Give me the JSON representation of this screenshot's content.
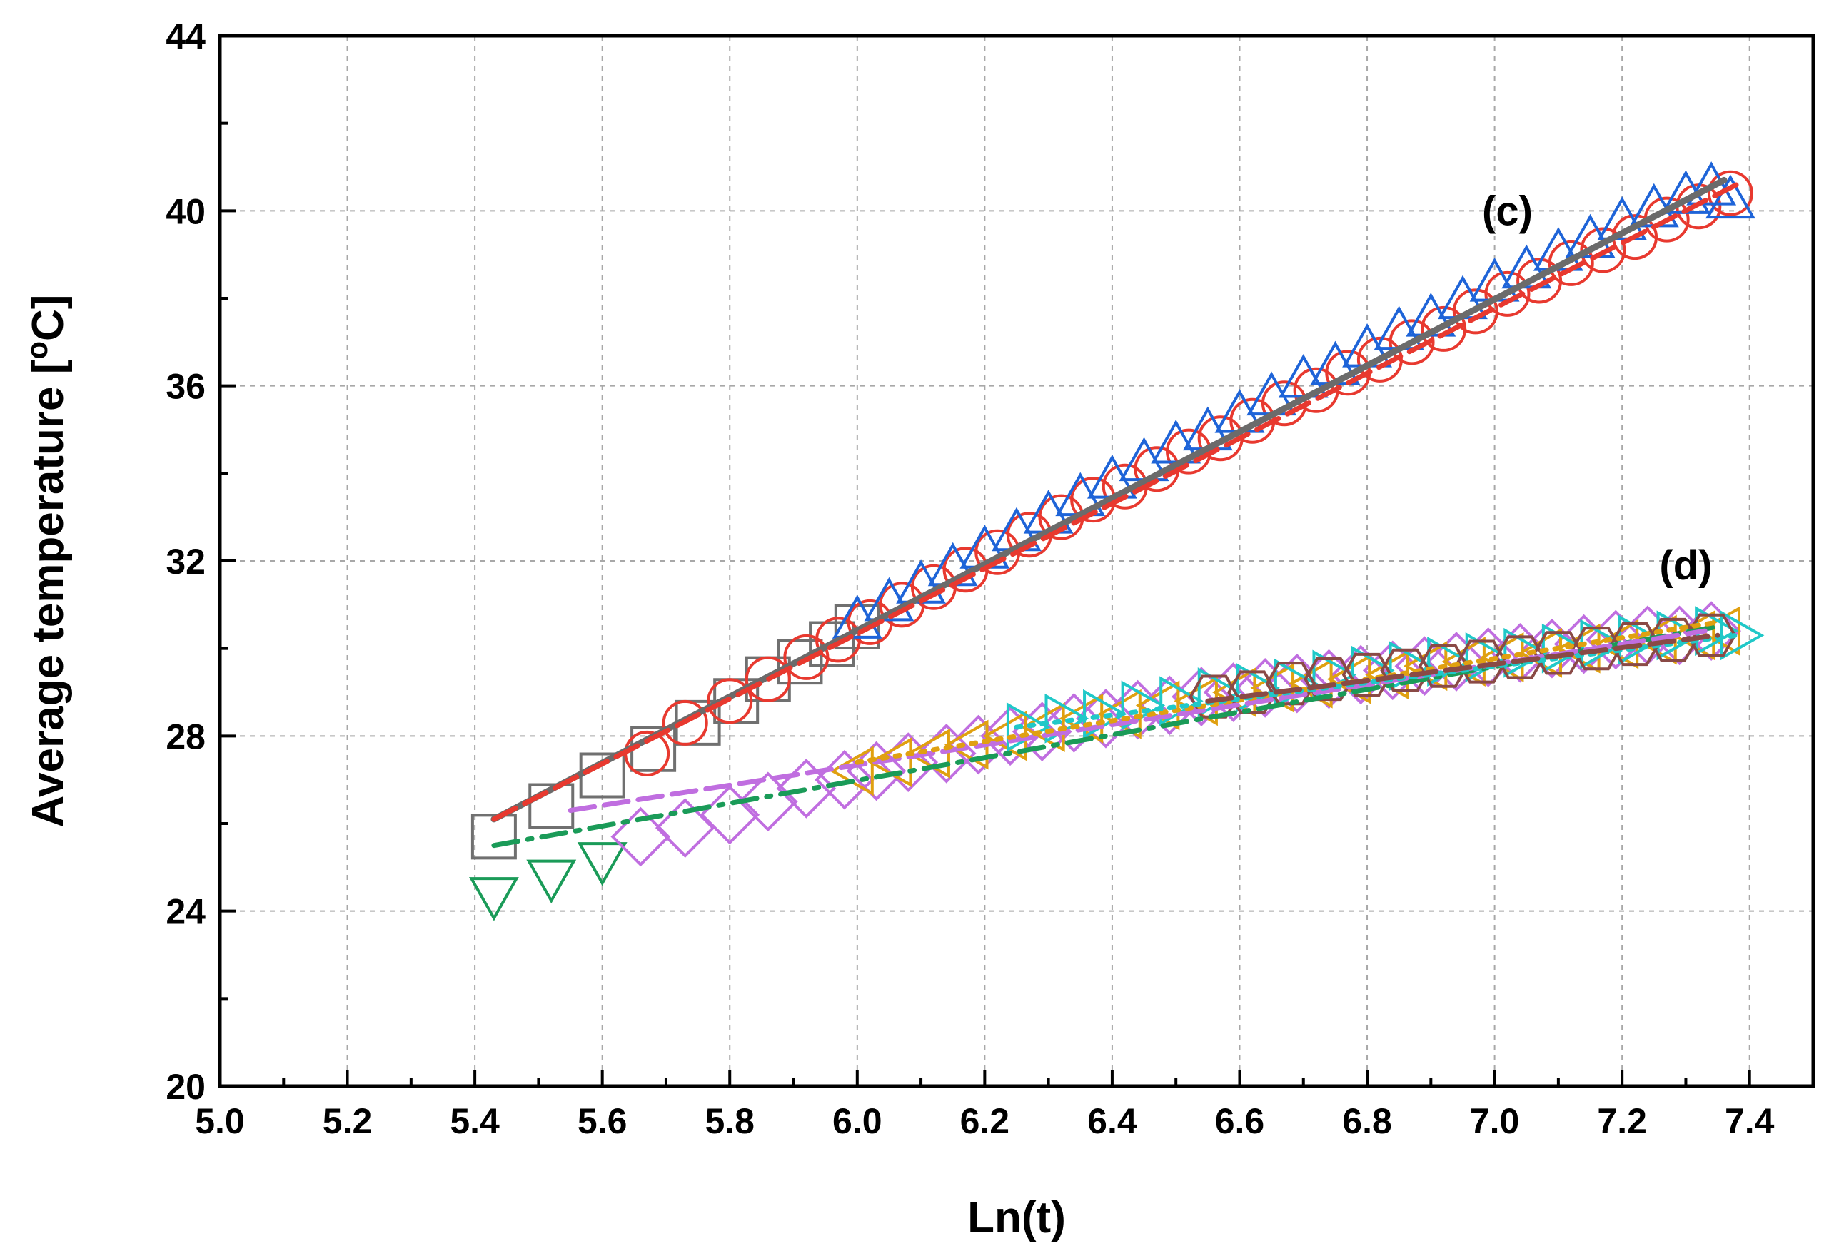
{
  "chart_data": {
    "type": "scatter",
    "title": "",
    "xlabel": "Ln(t)",
    "ylabel_main": "Average temperature [",
    "ylabel_sup": "o",
    "ylabel_end": "C]",
    "xlim": [
      5.0,
      7.5
    ],
    "ylim": [
      20,
      44
    ],
    "xticks": [
      5.0,
      5.2,
      5.4,
      5.6,
      5.8,
      6.0,
      6.2,
      6.4,
      6.6,
      6.8,
      7.0,
      7.2,
      7.4
    ],
    "xtick_labels": [
      "5.0",
      "5.2",
      "5.4",
      "5.6",
      "5.8",
      "6.0",
      "6.2",
      "6.4",
      "6.6",
      "6.8",
      "7.0",
      "7.2",
      "7.4"
    ],
    "yticks": [
      20,
      24,
      28,
      32,
      36,
      40,
      44
    ],
    "ytick_labels": [
      "20",
      "24",
      "28",
      "32",
      "36",
      "40",
      "44"
    ],
    "grid": true,
    "annotations": [
      {
        "text": "(c)",
        "x": 7.02,
        "y": 40.0
      },
      {
        "text": "(d)",
        "x": 7.3,
        "y": 31.9
      }
    ],
    "groups": [
      {
        "name": "(c)",
        "fit_line": {
          "color": "#6b6b6b",
          "style": "solid",
          "x": [
            5.43,
            7.36
          ],
          "y": [
            26.1,
            40.7
          ]
        },
        "fit_line_2": {
          "color": "#e8392f",
          "style": "dashed",
          "x": [
            5.43,
            7.38
          ],
          "y": [
            26.1,
            40.6
          ]
        },
        "series": [
          {
            "name": "square",
            "marker": "square",
            "color": "#707070",
            "x": [
              5.43,
              5.52,
              5.6,
              5.68,
              5.75,
              5.81,
              5.86,
              5.91,
              5.96,
              6.0
            ],
            "y": [
              25.7,
              26.4,
              27.1,
              27.7,
              28.3,
              28.8,
              29.3,
              29.7,
              30.1,
              30.5
            ]
          },
          {
            "name": "circle",
            "marker": "circle",
            "color": "#e8392f",
            "x": [
              5.67,
              5.73,
              5.8,
              5.86,
              5.92,
              5.97,
              6.02,
              6.07,
              6.12,
              6.17,
              6.22,
              6.27,
              6.32,
              6.37,
              6.42,
              6.47,
              6.52,
              6.57,
              6.62,
              6.67,
              6.72,
              6.77,
              6.82,
              6.87,
              6.92,
              6.97,
              7.02,
              7.07,
              7.12,
              7.17,
              7.22,
              7.27,
              7.32,
              7.37
            ],
            "y": [
              27.6,
              28.3,
              28.8,
              29.3,
              29.8,
              30.2,
              30.6,
              31.0,
              31.4,
              31.8,
              32.2,
              32.6,
              33.0,
              33.4,
              33.7,
              34.1,
              34.5,
              34.8,
              35.2,
              35.6,
              35.9,
              36.3,
              36.6,
              37.0,
              37.3,
              37.7,
              38.1,
              38.4,
              38.8,
              39.1,
              39.4,
              39.8,
              40.1,
              40.4
            ]
          },
          {
            "name": "triangle-up",
            "marker": "triangle-up",
            "color": "#1e64d8",
            "x": [
              6.0,
              6.05,
              6.1,
              6.15,
              6.2,
              6.25,
              6.3,
              6.35,
              6.4,
              6.45,
              6.5,
              6.55,
              6.6,
              6.65,
              6.7,
              6.75,
              6.8,
              6.85,
              6.9,
              6.95,
              7.0,
              7.05,
              7.1,
              7.15,
              7.2,
              7.25,
              7.3,
              7.34,
              7.37
            ],
            "y": [
              30.6,
              31.0,
              31.4,
              31.8,
              32.2,
              32.6,
              33.0,
              33.4,
              33.8,
              34.2,
              34.6,
              34.9,
              35.3,
              35.7,
              36.1,
              36.4,
              36.8,
              37.2,
              37.5,
              37.9,
              38.3,
              38.6,
              39.0,
              39.3,
              39.7,
              40.0,
              40.3,
              40.5,
              40.2
            ]
          }
        ]
      },
      {
        "name": "(d)",
        "fit_line": {
          "color": "#1a9b58",
          "style": "dash-dot",
          "x": [
            5.43,
            7.35
          ],
          "y": [
            25.5,
            30.5
          ]
        },
        "fit_line_2": {
          "color": "#c06ee0",
          "style": "dashed",
          "x": [
            5.55,
            7.33
          ],
          "y": [
            26.3,
            30.4
          ]
        },
        "fit_line_3": {
          "color": "#e0a010",
          "style": "dotted",
          "x": [
            6.0,
            7.35
          ],
          "y": [
            27.4,
            30.6
          ]
        },
        "fit_line_4": {
          "color": "#20c8c8",
          "style": "dotted",
          "x": [
            6.25,
            7.38
          ],
          "y": [
            28.2,
            30.3
          ]
        },
        "fit_line_5": {
          "color": "#8a4a46",
          "style": "dashed",
          "x": [
            6.55,
            7.35
          ],
          "y": [
            28.8,
            30.3
          ]
        },
        "series": [
          {
            "name": "triangle-down",
            "marker": "triangle-down",
            "color": "#1a9b58",
            "x": [
              5.43,
              5.52,
              5.6
            ],
            "y": [
              24.4,
              24.8,
              25.2
            ]
          },
          {
            "name": "diamond",
            "marker": "diamond",
            "color": "#c06ee0",
            "x": [
              5.66,
              5.73,
              5.8,
              5.86,
              5.92,
              5.98,
              6.03,
              6.08,
              6.14,
              6.19,
              6.24,
              6.29,
              6.34,
              6.39,
              6.44,
              6.49,
              6.54,
              6.59,
              6.64,
              6.69,
              6.74,
              6.79,
              6.84,
              6.89,
              6.94,
              6.99,
              7.04,
              7.09,
              7.14,
              7.19,
              7.24,
              7.29,
              7.34
            ],
            "y": [
              25.7,
              25.9,
              26.2,
              26.5,
              26.8,
              27.0,
              27.2,
              27.4,
              27.6,
              27.8,
              28.0,
              28.1,
              28.3,
              28.4,
              28.6,
              28.7,
              28.9,
              29.0,
              29.1,
              29.2,
              29.3,
              29.4,
              29.5,
              29.6,
              29.7,
              29.8,
              29.9,
              30.0,
              30.1,
              30.2,
              30.3,
              30.3,
              30.4
            ]
          },
          {
            "name": "triangle-left",
            "marker": "triangle-left",
            "color": "#e0a010",
            "x": [
              6.0,
              6.06,
              6.12,
              6.18,
              6.24,
              6.3,
              6.36,
              6.42,
              6.48,
              6.54,
              6.6,
              6.66,
              6.72,
              6.78,
              6.84,
              6.9,
              6.96,
              7.02,
              7.08,
              7.14,
              7.2,
              7.26,
              7.32,
              7.36
            ],
            "y": [
              27.2,
              27.4,
              27.6,
              27.8,
              28.0,
              28.2,
              28.4,
              28.5,
              28.7,
              28.8,
              29.0,
              29.1,
              29.2,
              29.3,
              29.4,
              29.6,
              29.7,
              29.8,
              29.9,
              30.0,
              30.1,
              30.2,
              30.3,
              30.4
            ]
          },
          {
            "name": "triangle-right",
            "marker": "triangle-right",
            "color": "#20c8c8",
            "x": [
              6.26,
              6.32,
              6.38,
              6.44,
              6.5,
              6.56,
              6.62,
              6.68,
              6.74,
              6.8,
              6.86,
              6.92,
              6.98,
              7.04,
              7.1,
              7.16,
              7.22,
              7.28,
              7.34,
              7.38
            ],
            "y": [
              28.2,
              28.4,
              28.5,
              28.7,
              28.8,
              29.0,
              29.1,
              29.2,
              29.4,
              29.5,
              29.6,
              29.7,
              29.8,
              29.9,
              30.0,
              30.1,
              30.2,
              30.3,
              30.4,
              30.3
            ]
          },
          {
            "name": "hexagon",
            "marker": "hexagon",
            "color": "#8a4a46",
            "x": [
              6.56,
              6.62,
              6.68,
              6.74,
              6.8,
              6.86,
              6.92,
              6.98,
              7.04,
              7.1,
              7.16,
              7.22,
              7.28,
              7.34
            ],
            "y": [
              28.9,
              29.0,
              29.2,
              29.3,
              29.4,
              29.5,
              29.6,
              29.7,
              29.8,
              29.9,
              30.0,
              30.1,
              30.2,
              30.3
            ]
          }
        ]
      }
    ]
  }
}
